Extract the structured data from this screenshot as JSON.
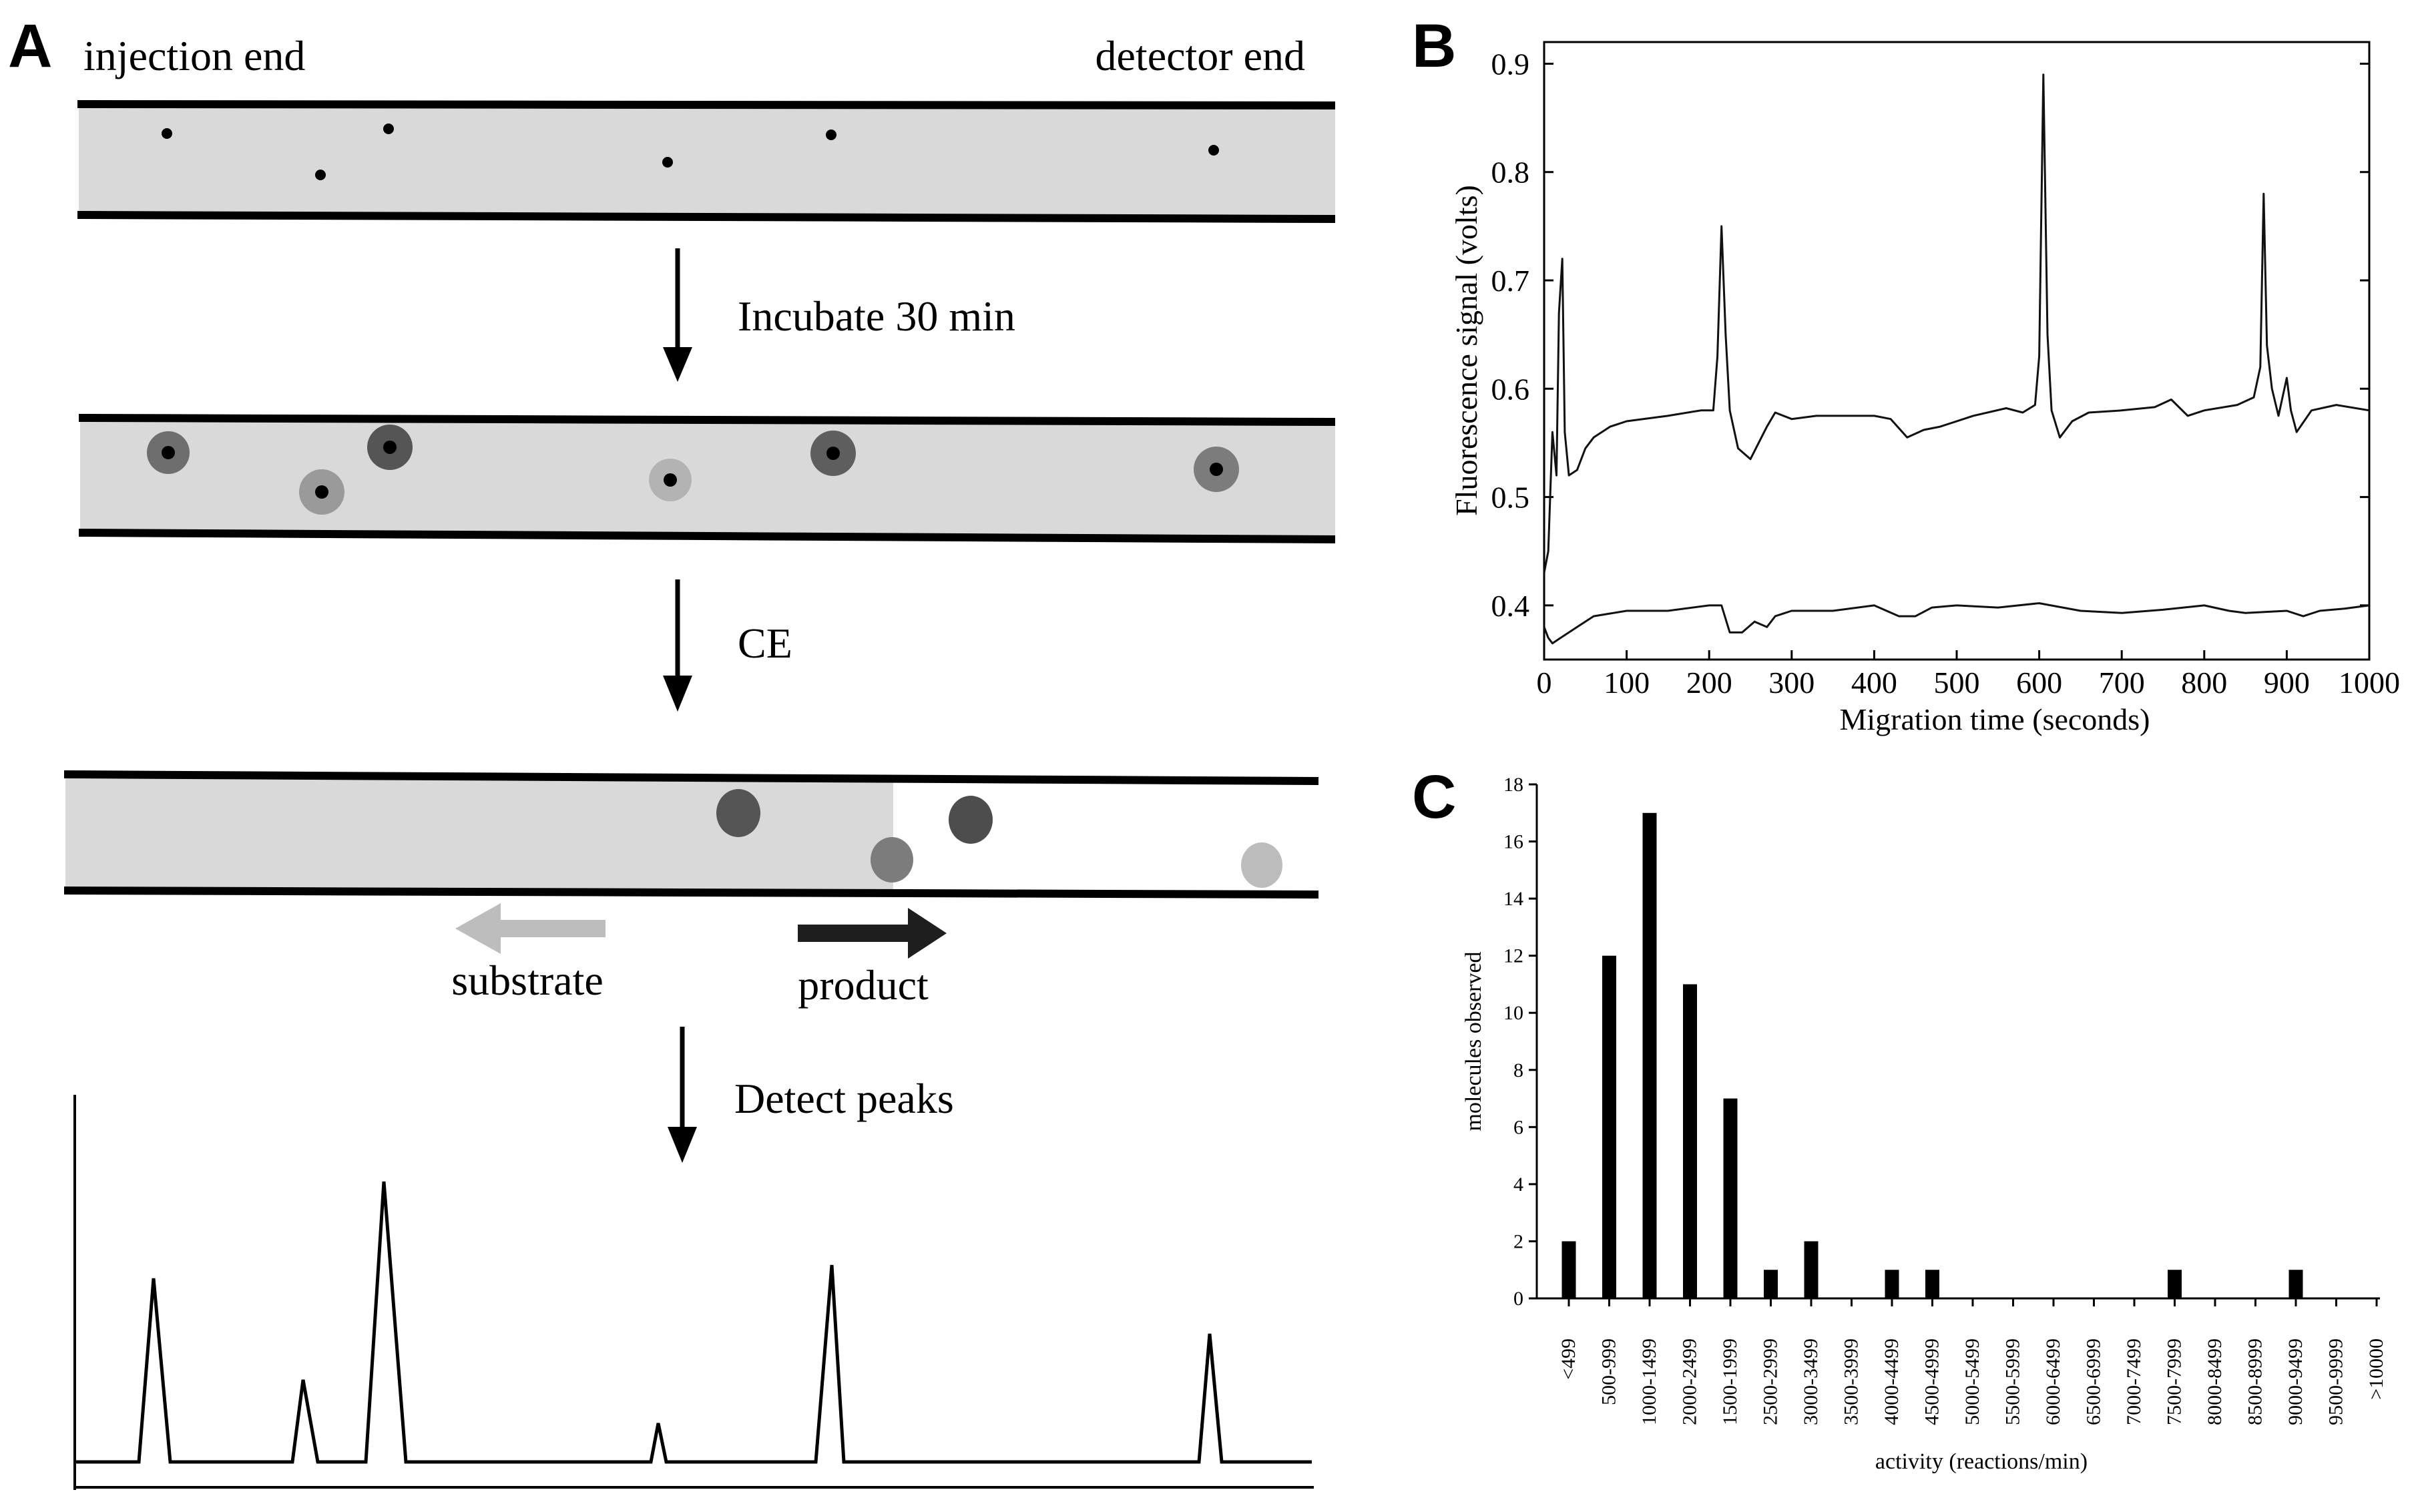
{
  "panel_a": {
    "letter": "A",
    "injection_label": "injection end",
    "detector_label": "detector end",
    "step1": "Incubate 30 min",
    "step2": "CE",
    "step3": "Detect peaks",
    "substrate_label": "substrate",
    "product_label": "product",
    "colors": {
      "capillary_fill": "#d9d9d9",
      "substrate_arrow": "#bdbdbd",
      "product_arrow": "#1e1e1e",
      "dark_product": "#555555",
      "mid_product": "#7c7c7c",
      "light_product": "#b0b0b0"
    }
  },
  "panel_b": {
    "letter": "B",
    "chart_data": {
      "type": "line",
      "xlabel": "Migration time (seconds)",
      "ylabel": "Fluorescence signal (volts)",
      "xlim": [
        0,
        1000
      ],
      "ylim": [
        0.35,
        0.92
      ],
      "x_ticks": [
        0,
        100,
        200,
        300,
        400,
        500,
        600,
        700,
        800,
        900,
        1000
      ],
      "y_ticks": [
        0.4,
        0.5,
        0.6,
        0.7,
        0.8,
        0.9
      ],
      "series": [
        {
          "name": "upper trace",
          "x": [
            0,
            5,
            10,
            15,
            18,
            22,
            25,
            30,
            40,
            50,
            60,
            80,
            100,
            150,
            190,
            205,
            210,
            215,
            220,
            225,
            235,
            250,
            270,
            280,
            300,
            330,
            360,
            400,
            420,
            440,
            460,
            480,
            520,
            560,
            580,
            595,
            600,
            605,
            610,
            615,
            625,
            640,
            660,
            700,
            740,
            760,
            780,
            800,
            840,
            860,
            868,
            872,
            876,
            882,
            890,
            900,
            905,
            912,
            930,
            960,
            1000
          ],
          "y": [
            0.43,
            0.45,
            0.56,
            0.52,
            0.67,
            0.72,
            0.56,
            0.52,
            0.525,
            0.545,
            0.555,
            0.565,
            0.57,
            0.575,
            0.58,
            0.58,
            0.63,
            0.75,
            0.65,
            0.58,
            0.545,
            0.535,
            0.565,
            0.578,
            0.572,
            0.575,
            0.575,
            0.575,
            0.572,
            0.555,
            0.562,
            0.565,
            0.575,
            0.582,
            0.578,
            0.585,
            0.63,
            0.89,
            0.65,
            0.58,
            0.555,
            0.57,
            0.578,
            0.58,
            0.583,
            0.59,
            0.575,
            0.58,
            0.585,
            0.592,
            0.62,
            0.78,
            0.64,
            0.6,
            0.575,
            0.61,
            0.58,
            0.56,
            0.58,
            0.585,
            0.58
          ]
        },
        {
          "name": "lower trace",
          "x": [
            0,
            5,
            10,
            20,
            40,
            60,
            100,
            150,
            200,
            215,
            225,
            240,
            255,
            270,
            280,
            300,
            350,
            400,
            430,
            450,
            470,
            500,
            550,
            600,
            650,
            700,
            750,
            800,
            830,
            850,
            900,
            920,
            940,
            970,
            1000
          ],
          "y": [
            0.38,
            0.37,
            0.365,
            0.37,
            0.38,
            0.39,
            0.395,
            0.395,
            0.4,
            0.4,
            0.375,
            0.375,
            0.385,
            0.38,
            0.39,
            0.395,
            0.395,
            0.4,
            0.39,
            0.39,
            0.398,
            0.4,
            0.398,
            0.402,
            0.395,
            0.393,
            0.396,
            0.4,
            0.395,
            0.393,
            0.395,
            0.39,
            0.395,
            0.397,
            0.4
          ]
        }
      ]
    }
  },
  "panel_c": {
    "letter": "C",
    "chart_data": {
      "type": "bar",
      "xlabel": "activity (reactions/min)",
      "ylabel": "molecules observed",
      "ylim": [
        0,
        18
      ],
      "y_ticks": [
        0,
        2,
        4,
        6,
        8,
        10,
        12,
        14,
        16,
        18
      ],
      "categories": [
        "<499",
        "500-999",
        "1000-1499",
        "2000-2499",
        "1500-1999",
        "2500-2999",
        "3000-3499",
        "3500-3999",
        "4000-4499",
        "4500-4999",
        "5000-5499",
        "5500-5999",
        "6000-6499",
        "6500-6999",
        "7000-7499",
        "7500-7999",
        "8000-8499",
        "8500-8999",
        "9000-9499",
        "9500-9999",
        ">10000"
      ],
      "values": [
        2,
        12,
        17,
        11,
        7,
        1,
        2,
        0,
        1,
        1,
        0,
        0,
        0,
        0,
        0,
        1,
        0,
        0,
        1,
        0,
        0
      ]
    }
  }
}
